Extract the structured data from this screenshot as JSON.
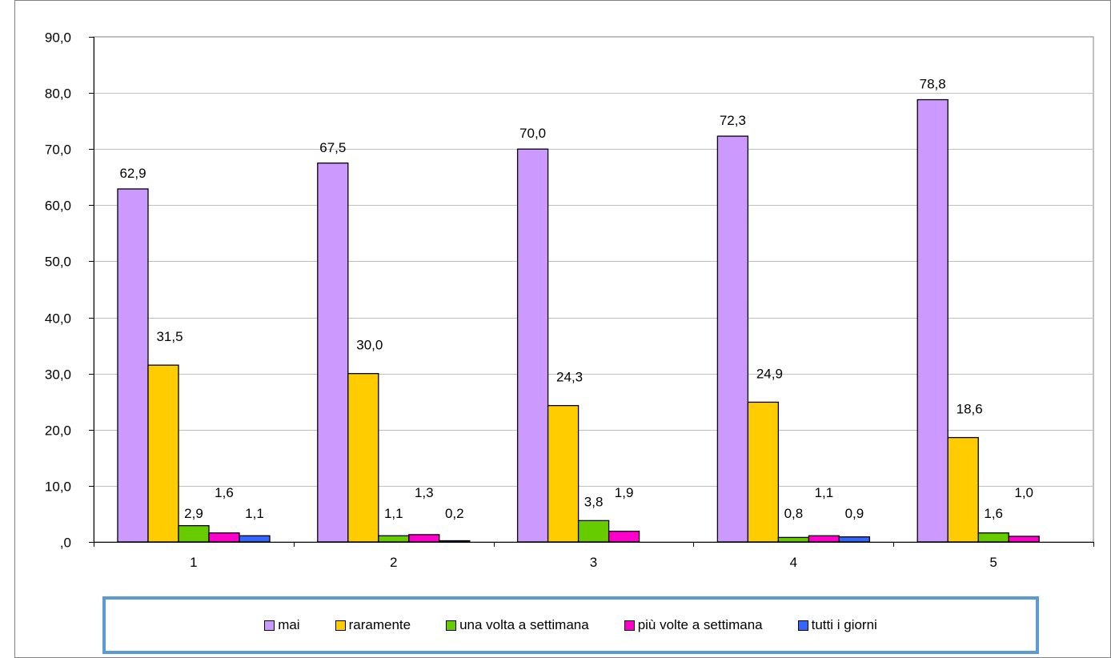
{
  "chart_data": {
    "type": "bar",
    "categories": [
      "1",
      "2",
      "3",
      "4",
      "5"
    ],
    "series": [
      {
        "name": "mai",
        "color": "#cc99ff",
        "values": [
          62.9,
          67.5,
          70.0,
          72.3,
          78.8
        ],
        "labels": [
          "62,9",
          "67,5",
          "70,0",
          "72,3",
          "78,8"
        ]
      },
      {
        "name": "raramente",
        "color": "#ffcc00",
        "values": [
          31.5,
          30.0,
          24.3,
          24.9,
          18.6
        ],
        "labels": [
          "31,5",
          "30,0",
          "24,3",
          "24,9",
          "18,6"
        ]
      },
      {
        "name": "una volta a settimana",
        "color": "#66cc00",
        "values": [
          2.9,
          1.1,
          3.8,
          0.8,
          1.6
        ],
        "labels": [
          "2,9",
          "1,1",
          "3,8",
          "0,8",
          "1,6"
        ]
      },
      {
        "name": "più volte a settimana",
        "color": "#ff00cc",
        "values": [
          1.6,
          1.3,
          1.9,
          1.1,
          1.0
        ],
        "labels": [
          "1,6",
          "1,3",
          "1,9",
          "1,1",
          "1,0"
        ]
      },
      {
        "name": "tutti i giorni",
        "color": "#3366ff",
        "values": [
          1.1,
          0.2,
          null,
          0.9,
          null
        ],
        "labels": [
          "1,1",
          "0,2",
          null,
          "0,9",
          null
        ]
      }
    ],
    "yticks": [
      ",0",
      "10,0",
      "20,0",
      "30,0",
      "40,0",
      "50,0",
      "60,0",
      "70,0",
      "80,0",
      "90,0"
    ],
    "ylim": [
      0,
      90
    ],
    "grid": true,
    "legend": "bottom"
  }
}
